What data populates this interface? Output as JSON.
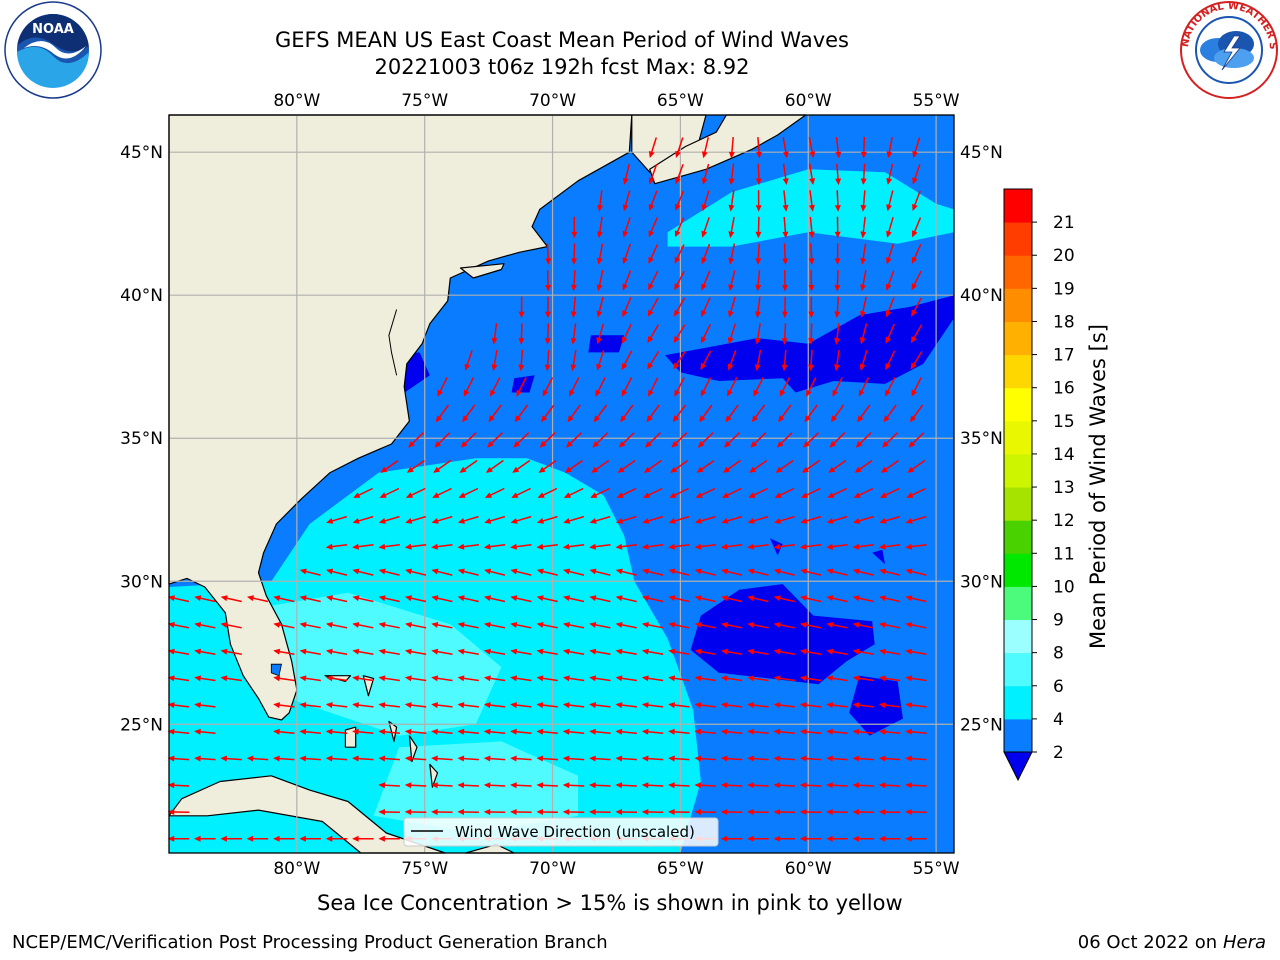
{
  "header": {
    "title_line1": "GEFS MEAN US East Coast Mean Period of Wind Waves",
    "title_line2": "20221003 t06z 192h fcst   Max: 8.92"
  },
  "logos": {
    "left": {
      "icon": "noaa-logo",
      "text": "NOAA",
      "ring_text": "NATIONAL OCEANIC AND ATMOSPHERIC ADMINISTRATION · U.S. DEPARTMENT OF COMMERCE"
    },
    "right": {
      "icon": "nws-logo",
      "ring_text": "NATIONAL WEATHER SERVICE"
    }
  },
  "map": {
    "lon_range": [
      -85,
      -54.3
    ],
    "lat_range": [
      20.5,
      46.3
    ],
    "lon_ticks": [
      {
        "value": -80,
        "label": "80°W"
      },
      {
        "value": -75,
        "label": "75°W"
      },
      {
        "value": -70,
        "label": "70°W"
      },
      {
        "value": -65,
        "label": "65°W"
      },
      {
        "value": -60,
        "label": "60°W"
      },
      {
        "value": -55,
        "label": "55°W"
      }
    ],
    "lat_ticks": [
      {
        "value": 45,
        "label": "45°N"
      },
      {
        "value": 40,
        "label": "40°N"
      },
      {
        "value": 35,
        "label": "35°N"
      },
      {
        "value": 30,
        "label": "30°N"
      },
      {
        "value": 25,
        "label": "25°N"
      }
    ],
    "gridlines": true,
    "colors": {
      "land": "#efeedc",
      "coast": "#000000",
      "grid": "#b0b0b0",
      "arrow": "#ff0000"
    },
    "legend_label": "Wind Wave Direction (unscaled)",
    "legend_position": "bottom-center"
  },
  "colorbar": {
    "label": "Mean Period of Wind Waves [s]",
    "extend": "min",
    "under_color": "#0000ee",
    "ticks": [
      "2",
      "4",
      "6",
      "8",
      "9",
      "10",
      "11",
      "12",
      "13",
      "14",
      "15",
      "16",
      "17",
      "18",
      "19",
      "20",
      "21"
    ],
    "colors": [
      "#0a7cff",
      "#00f0ff",
      "#4ffbff",
      "#9cffff",
      "#4cfa7c",
      "#00e800",
      "#4ad200",
      "#a7e300",
      "#cdf500",
      "#e9f800",
      "#ffff00",
      "#ffd700",
      "#ffb000",
      "#ff8d00",
      "#ff6600",
      "#ff3d00",
      "#ff0000"
    ]
  },
  "annotation": "Sea Ice Concentration > 15% is shown in pink to yellow",
  "footer": {
    "left": "NCEP/EMC/Verification Post Processing Product Generation Branch",
    "right_date": "06 Oct 2022 on ",
    "right_machine": "Hera"
  }
}
